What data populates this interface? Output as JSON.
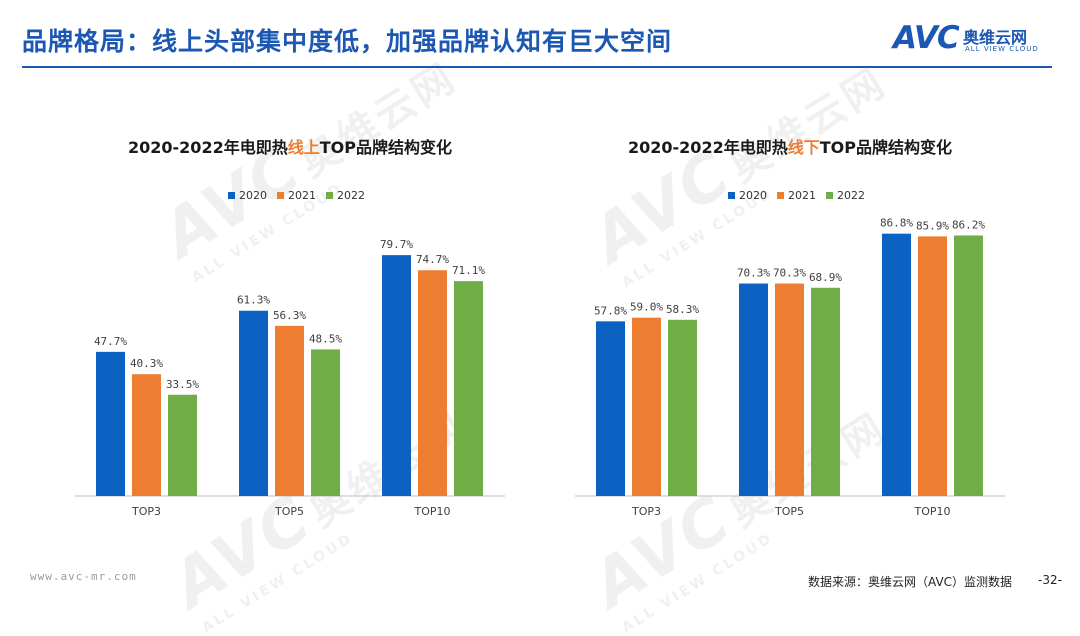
{
  "header": {
    "title": "品牌格局：线上头部集中度低，加强品牌认知有巨大空间"
  },
  "logo": {
    "mark": "AVC",
    "cn": "奥维云网",
    "en": "ALL VIEW CLOUD"
  },
  "watermark": {
    "mark": "AVC",
    "cn": "奥维云网",
    "en": "ALL VIEW CLOUD"
  },
  "colors": {
    "brand": "#1b57b3",
    "series_2020": "#0c62c3",
    "series_2021": "#ed7d31",
    "series_2022": "#70ad47",
    "highlight": "#ed7d31"
  },
  "chart_data": [
    {
      "type": "bar",
      "title_prefix": "2020-2022年电即热",
      "title_highlight": "线上",
      "title_suffix": "TOP品牌结构变化",
      "categories": [
        "TOP3",
        "TOP5",
        "TOP10"
      ],
      "series": [
        {
          "name": "2020",
          "values": [
            47.7,
            61.3,
            79.7
          ]
        },
        {
          "name": "2021",
          "values": [
            40.3,
            56.3,
            74.7
          ]
        },
        {
          "name": "2022",
          "values": [
            33.5,
            48.5,
            71.1
          ]
        }
      ],
      "value_suffix": "%",
      "ylim": [
        0,
        90
      ],
      "grid": false,
      "legend_position": "top"
    },
    {
      "type": "bar",
      "title_prefix": "2020-2022年电即热",
      "title_highlight": "线下",
      "title_suffix": "TOP品牌结构变化",
      "categories": [
        "TOP3",
        "TOP5",
        "TOP10"
      ],
      "series": [
        {
          "name": "2020",
          "values": [
            57.8,
            70.3,
            86.8
          ]
        },
        {
          "name": "2021",
          "values": [
            59.0,
            70.3,
            85.9
          ]
        },
        {
          "name": "2022",
          "values": [
            58.3,
            68.9,
            86.2
          ]
        }
      ],
      "value_suffix": "%",
      "ylim": [
        0,
        90
      ],
      "grid": false,
      "legend_position": "top"
    }
  ],
  "footer": {
    "url": "www.avc-mr.com",
    "source": "数据来源：奥维云网（AVC）监测数据",
    "page": "-32-"
  }
}
